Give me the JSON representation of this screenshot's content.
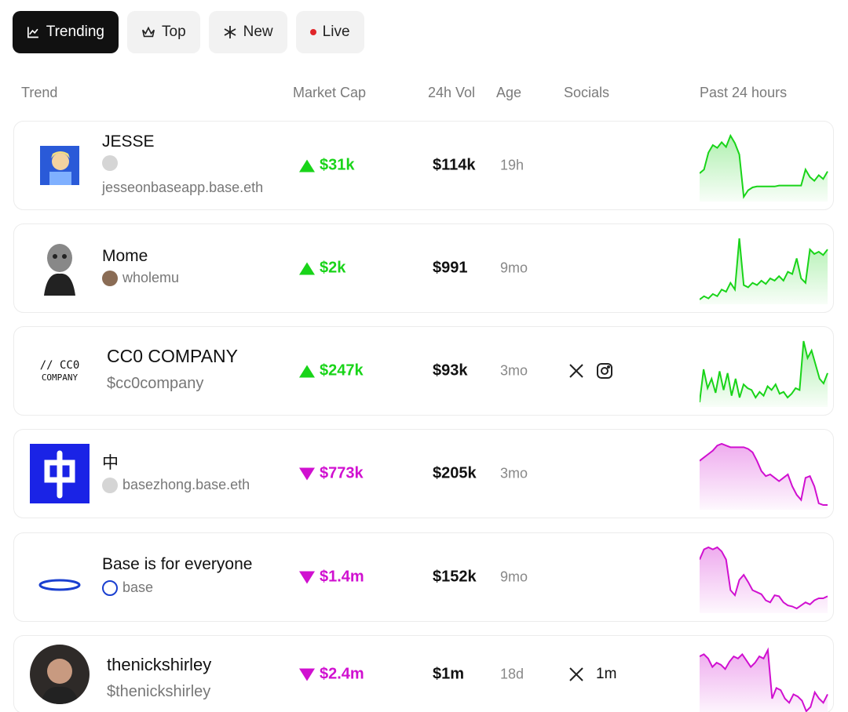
{
  "tabs": [
    {
      "label": "Trending",
      "icon": "chart-line-icon",
      "active": true
    },
    {
      "label": "Top",
      "icon": "crown-icon",
      "active": false
    },
    {
      "label": "New",
      "icon": "asterisk-icon",
      "active": false
    },
    {
      "label": "Live",
      "icon": "live-dot-icon",
      "active": false
    }
  ],
  "columns": {
    "trend": "Trend",
    "market_cap": "Market Cap",
    "volume": "24h Vol",
    "age": "Age",
    "socials": "Socials",
    "past": "Past 24 hours"
  },
  "colors": {
    "up": "#19d419",
    "down": "#d010d0",
    "active_tab": "#111111"
  },
  "rows": [
    {
      "name": "JESSE",
      "sub": "jesseonbaseapp.base.eth",
      "mcap": "$31k",
      "trend": "up",
      "vol": "$114k",
      "age": "19h",
      "socials": [],
      "spark": [
        30,
        34,
        52,
        60,
        57,
        63,
        58,
        70,
        62,
        50,
        5,
        12,
        15,
        16,
        16,
        16,
        16,
        16,
        17,
        17,
        17,
        17,
        17,
        17,
        34,
        26,
        22,
        28,
        24,
        32
      ]
    },
    {
      "name": "Mome",
      "sub": "wholemu",
      "mcap": "$2k",
      "trend": "up",
      "vol": "$991",
      "age": "9mo",
      "socials": [],
      "spark": [
        5,
        8,
        6,
        10,
        8,
        14,
        12,
        20,
        14,
        60,
        18,
        16,
        20,
        18,
        22,
        19,
        24,
        22,
        26,
        22,
        30,
        28,
        42,
        24,
        20,
        50,
        46,
        48,
        45,
        50
      ]
    },
    {
      "name": "CC0 COMPANY",
      "sub": "$cc0company",
      "mcap": "$247k",
      "trend": "up",
      "vol": "$93k",
      "age": "3mo",
      "socials": [
        "x-icon",
        "instagram-icon"
      ],
      "spark": [
        5,
        40,
        20,
        30,
        15,
        38,
        18,
        36,
        12,
        30,
        10,
        24,
        20,
        18,
        10,
        16,
        12,
        22,
        18,
        24,
        14,
        16,
        10,
        14,
        20,
        18,
        70,
        52,
        60,
        45,
        30,
        25,
        36
      ]
    },
    {
      "name": "中",
      "sub": "basezhong.base.eth",
      "mcap": "$773k",
      "trend": "down",
      "vol": "$205k",
      "age": "3mo",
      "socials": [],
      "spark": [
        60,
        64,
        68,
        72,
        78,
        80,
        78,
        76,
        76,
        76,
        76,
        74,
        70,
        60,
        48,
        42,
        44,
        40,
        36,
        40,
        44,
        30,
        20,
        14,
        40,
        42,
        30,
        10,
        8,
        8
      ]
    },
    {
      "name": "Base is for everyone",
      "sub": "base",
      "mcap": "$1.4m",
      "trend": "down",
      "vol": "$152k",
      "age": "9mo",
      "socials": [],
      "spark": [
        60,
        70,
        72,
        70,
        72,
        68,
        60,
        30,
        25,
        40,
        45,
        38,
        30,
        28,
        26,
        20,
        18,
        25,
        24,
        18,
        15,
        14,
        12,
        15,
        18,
        16,
        20,
        22,
        22,
        24
      ]
    },
    {
      "name": "thenickshirley",
      "sub": "$thenickshirley",
      "mcap": "$2.4m",
      "trend": "down",
      "vol": "$1m",
      "age": "18d",
      "socials": [
        "x-icon"
      ],
      "social_count": "1m",
      "spark": [
        60,
        62,
        58,
        50,
        54,
        52,
        48,
        55,
        60,
        58,
        62,
        56,
        50,
        54,
        60,
        58,
        66,
        20,
        30,
        28,
        20,
        16,
        24,
        22,
        18,
        8,
        12,
        26,
        20,
        16,
        24
      ]
    }
  ]
}
